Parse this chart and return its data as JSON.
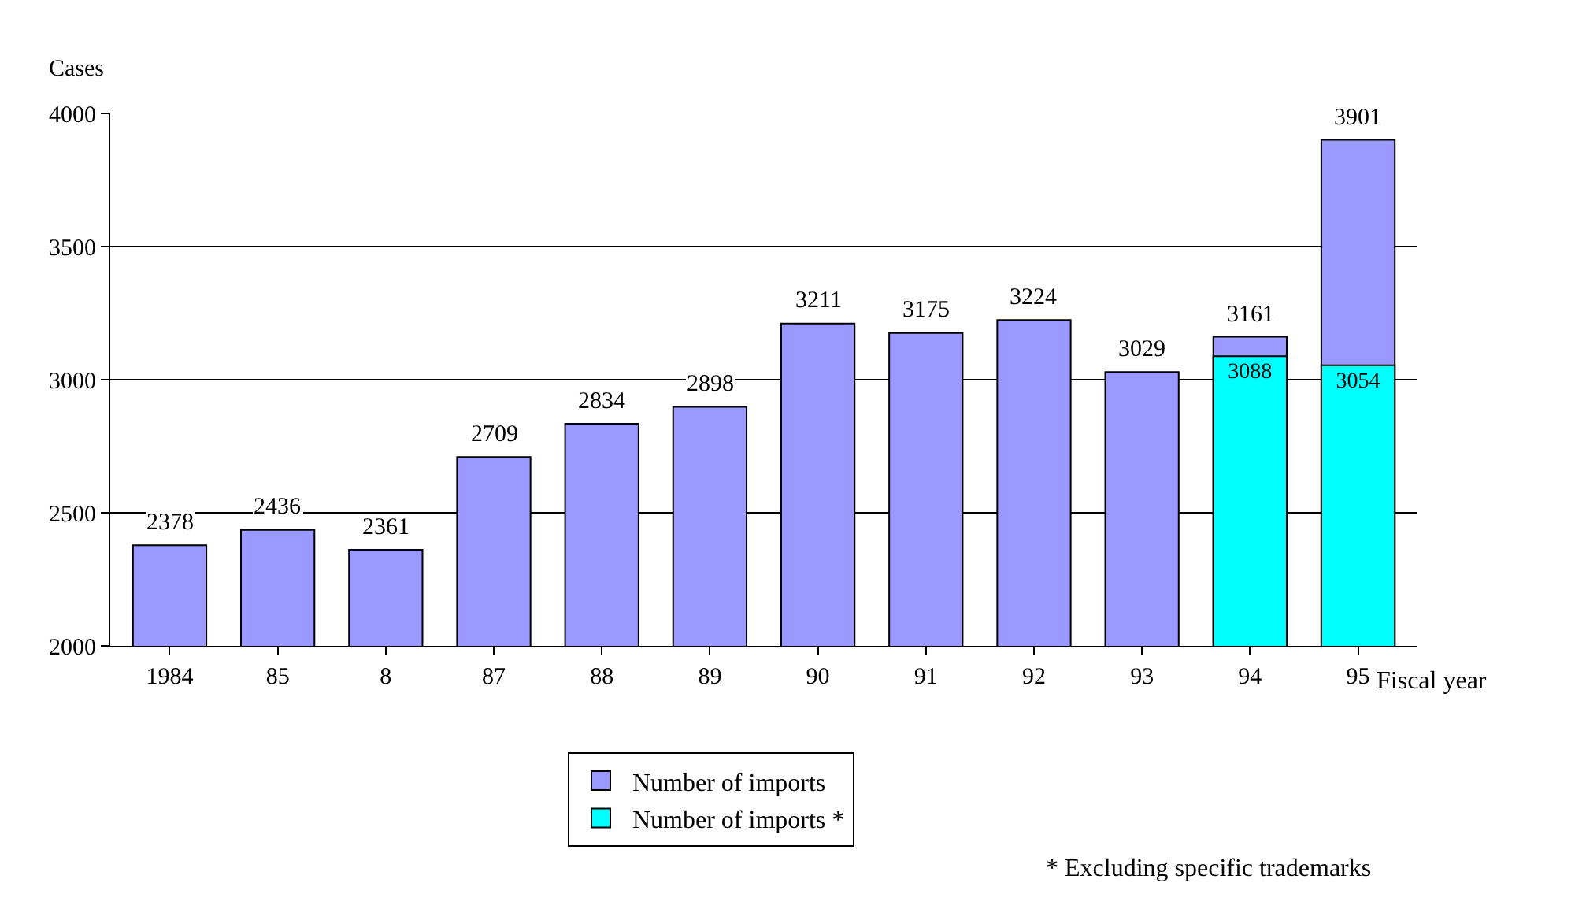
{
  "chart_data": {
    "type": "bar",
    "ylabel": "Cases",
    "xlabel": "Fiscal year",
    "categories": [
      "1984",
      "85",
      "8",
      "87",
      "88",
      "89",
      "90",
      "91",
      "92",
      "93",
      "94",
      "95"
    ],
    "series": [
      {
        "name": "Number of imports *",
        "color": "#00ffff",
        "values": [
          null,
          null,
          null,
          null,
          null,
          null,
          null,
          null,
          null,
          null,
          3088,
          3054
        ],
        "value_labels": [
          null,
          null,
          null,
          null,
          null,
          null,
          null,
          null,
          null,
          null,
          "3088",
          "3054"
        ]
      },
      {
        "name": "Number of imports",
        "color": "#9999ff",
        "values": [
          2378,
          2436,
          2361,
          2709,
          2834,
          2898,
          3211,
          3175,
          3224,
          3029,
          3161,
          3901
        ],
        "value_labels": [
          "2378",
          "2436",
          "2361",
          "2709",
          "2834",
          "2898",
          "3211",
          "3175",
          "3224",
          "3029",
          "3161",
          "3901"
        ]
      }
    ],
    "ylim": [
      2000,
      4000
    ],
    "yticks": [
      2000,
      2500,
      3000,
      3500,
      4000
    ],
    "grid": "y",
    "legend": "bottom",
    "annotations": [
      "* Excluding specific trademarks"
    ]
  }
}
